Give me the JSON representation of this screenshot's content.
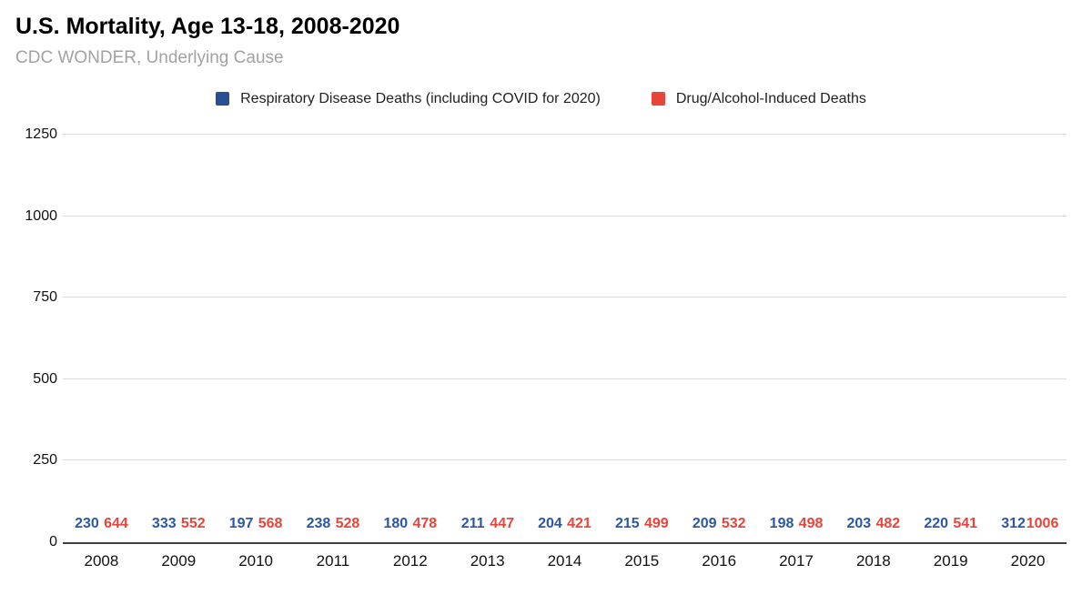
{
  "header": {
    "title": "U.S. Mortality, Age 13-18, 2008-2020",
    "subtitle": "CDC WONDER, Underlying Cause"
  },
  "chart_data": {
    "type": "bar",
    "title": "U.S. Mortality, Age 13-18, 2008-2020",
    "subtitle": "CDC WONDER, Underlying Cause",
    "categories": [
      "2008",
      "2009",
      "2010",
      "2011",
      "2012",
      "2013",
      "2014",
      "2015",
      "2016",
      "2017",
      "2018",
      "2019",
      "2020"
    ],
    "series": [
      {
        "key": "respiratory",
        "name": "Respiratory Disease Deaths (including COVID for 2020)",
        "color": "#274f94",
        "label_color": "#2c57a5",
        "values": [
          230,
          333,
          197,
          238,
          180,
          211,
          204,
          215,
          209,
          198,
          203,
          220,
          312
        ]
      },
      {
        "key": "drug-alcohol",
        "name": "Drug/Alcohol-Induced Deaths",
        "color": "#e8453a",
        "label_color": "#e8453a",
        "values": [
          644,
          552,
          568,
          528,
          478,
          447,
          421,
          499,
          532,
          498,
          482,
          541,
          1006
        ]
      }
    ],
    "ylim": [
      0,
      1250
    ],
    "yticks": [
      0,
      250,
      500,
      750,
      1000,
      1250
    ],
    "grid": true,
    "gridline_color": "#dadada",
    "baseline_color": "#3f3f3f",
    "legend_position": "top",
    "data_labels": true
  }
}
